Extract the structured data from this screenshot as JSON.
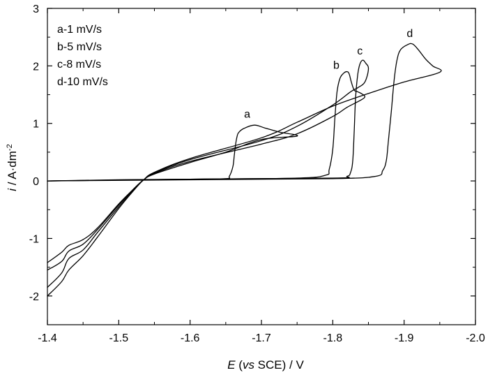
{
  "chart_data": {
    "type": "line",
    "x_axis": {
      "title_parts": [
        {
          "text": "E",
          "italic": true
        },
        {
          "text": " (",
          "italic": false
        },
        {
          "text": "vs",
          "italic": true
        },
        {
          "text": " SCE) / V",
          "italic": false
        }
      ],
      "range": [
        -1.4,
        -2.0
      ],
      "reversed": true,
      "ticks": [
        -1.4,
        -1.5,
        -1.6,
        -1.7,
        -1.8,
        -1.9,
        -2.0
      ],
      "tick_labels": [
        "-1.4",
        "-1.5",
        "-1.6",
        "-1.7",
        "-1.8",
        "-1.9",
        "-2.0"
      ]
    },
    "y_axis": {
      "title_parts": [
        {
          "text": "i",
          "italic": true
        },
        {
          "text": " / A·dm",
          "italic": false
        },
        {
          "text": "-2",
          "italic": false,
          "superscript": true
        }
      ],
      "range": [
        -2.5,
        3
      ],
      "ticks": [
        -2,
        -1,
        0,
        1,
        2,
        3
      ],
      "tick_labels": [
        "-2",
        "-1",
        "0",
        "1",
        "2",
        "3"
      ]
    },
    "grid": false,
    "legend": {
      "placement": "top-left",
      "entries": [
        "a-1 mV/s",
        "b-5 mV/s",
        "c-8 mV/s",
        "d-10 mV/s"
      ]
    },
    "series": [
      {
        "name": "a",
        "x": [
          -1.4,
          -1.5,
          -1.6,
          -1.65,
          -1.655,
          -1.66,
          -1.662,
          -1.664,
          -1.666,
          -1.668,
          -1.675,
          -1.69,
          -1.705,
          -1.725,
          -1.75,
          -1.7,
          -1.65,
          -1.6,
          -1.55,
          -1.535,
          -1.52,
          -1.5,
          -1.47,
          -1.45,
          -1.43,
          -1.42,
          -1.4
        ],
        "y": [
          0.0,
          0.02,
          0.03,
          0.04,
          0.08,
          0.25,
          0.45,
          0.65,
          0.78,
          0.84,
          0.91,
          0.97,
          0.92,
          0.85,
          0.78,
          0.72,
          0.5,
          0.32,
          0.12,
          0.02,
          -0.15,
          -0.4,
          -0.82,
          -1.02,
          -1.12,
          -1.24,
          -1.42
        ]
      },
      {
        "name": "b",
        "x": [
          -1.4,
          -1.6,
          -1.75,
          -1.79,
          -1.795,
          -1.8,
          -1.803,
          -1.806,
          -1.81,
          -1.815,
          -1.82,
          -1.823,
          -1.826,
          -1.83,
          -1.835,
          -1.84,
          -1.845,
          -1.84,
          -1.82,
          -1.8,
          -1.75,
          -1.7,
          -1.6,
          -1.55,
          -1.535,
          -1.52,
          -1.5,
          -1.47,
          -1.45,
          -1.43,
          -1.42,
          -1.4
        ],
        "y": [
          0.0,
          0.03,
          0.05,
          0.1,
          0.2,
          0.55,
          1.1,
          1.55,
          1.78,
          1.87,
          1.9,
          1.86,
          1.72,
          1.58,
          1.55,
          1.52,
          1.47,
          1.41,
          1.28,
          1.12,
          0.82,
          0.64,
          0.34,
          0.13,
          0.02,
          -0.15,
          -0.42,
          -0.85,
          -1.1,
          -1.22,
          -1.4,
          -1.55
        ]
      },
      {
        "name": "c",
        "x": [
          -1.4,
          -1.6,
          -1.8,
          -1.82,
          -1.825,
          -1.828,
          -1.83,
          -1.832,
          -1.835,
          -1.838,
          -1.842,
          -1.846,
          -1.85,
          -1.845,
          -1.835,
          -1.825,
          -1.8,
          -1.75,
          -1.7,
          -1.6,
          -1.55,
          -1.535,
          -1.52,
          -1.5,
          -1.47,
          -1.45,
          -1.43,
          -1.42,
          -1.4
        ],
        "y": [
          0.0,
          0.03,
          0.05,
          0.08,
          0.15,
          0.35,
          0.85,
          1.45,
          1.85,
          2.03,
          2.1,
          2.05,
          1.95,
          1.72,
          1.62,
          1.55,
          1.32,
          0.95,
          0.7,
          0.37,
          0.14,
          0.02,
          -0.16,
          -0.45,
          -0.9,
          -1.2,
          -1.35,
          -1.6,
          -1.85
        ]
      },
      {
        "name": "d",
        "x": [
          -1.4,
          -1.6,
          -1.8,
          -1.86,
          -1.87,
          -1.875,
          -1.878,
          -1.882,
          -1.886,
          -1.89,
          -1.895,
          -1.905,
          -1.912,
          -1.92,
          -1.93,
          -1.94,
          -1.95,
          -1.9,
          -1.85,
          -1.8,
          -1.75,
          -1.7,
          -1.6,
          -1.55,
          -1.535,
          -1.52,
          -1.5,
          -1.47,
          -1.45,
          -1.43,
          -1.42,
          -1.4
        ],
        "y": [
          0.0,
          0.02,
          0.04,
          0.08,
          0.18,
          0.35,
          0.7,
          1.2,
          1.75,
          2.1,
          2.28,
          2.37,
          2.38,
          2.28,
          2.12,
          2.0,
          1.89,
          1.72,
          1.52,
          1.3,
          1.02,
          0.75,
          0.39,
          0.15,
          0.02,
          -0.18,
          -0.48,
          -0.98,
          -1.3,
          -1.55,
          -1.75,
          -2.0
        ]
      }
    ],
    "curve_labels": [
      {
        "text": "a",
        "x": -1.68,
        "y": 1.1
      },
      {
        "text": "b",
        "x": -1.805,
        "y": 1.95
      },
      {
        "text": "c",
        "x": -1.838,
        "y": 2.2
      },
      {
        "text": "d",
        "x": -1.908,
        "y": 2.5
      }
    ]
  }
}
